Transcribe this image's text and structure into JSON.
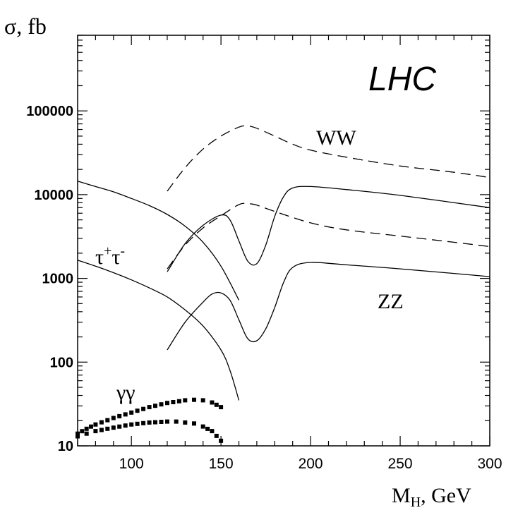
{
  "chart_data": {
    "type": "line",
    "title": "",
    "annotation": "LHC",
    "ylabel": "σ, fb",
    "xlabel": {
      "main": "M",
      "sub": "H",
      "rest": ", GeV"
    },
    "xlim": [
      70,
      300
    ],
    "ylim": [
      10,
      800000
    ],
    "yscale": "log",
    "x_ticks": [
      100,
      150,
      200,
      250,
      300
    ],
    "y_ticks": [
      10,
      100,
      1000,
      10000,
      100000
    ],
    "series_labels": [
      {
        "id": "ww",
        "text": "WW"
      },
      {
        "id": "zz",
        "text": "ZZ"
      },
      {
        "id": "tautau",
        "text": "τ",
        "sup1": "+",
        "mid": "τ",
        "sup2": "-"
      },
      {
        "id": "gamgam",
        "text": "γγ"
      }
    ],
    "series": [
      {
        "id": "ww-dashed-upper",
        "style": "dashed",
        "x": [
          120,
          130,
          140,
          150,
          160,
          165,
          170,
          180,
          190,
          200,
          220,
          250,
          280,
          300
        ],
        "y": [
          11000,
          21000,
          35000,
          50000,
          64000,
          66000,
          62000,
          50000,
          40000,
          34000,
          28000,
          22000,
          18500,
          16000
        ]
      },
      {
        "id": "ww-solid",
        "style": "solid",
        "x": [
          120,
          130,
          140,
          150,
          155,
          160,
          165,
          170,
          175,
          180,
          185,
          190,
          200,
          220,
          250,
          300
        ],
        "y": [
          1200,
          2600,
          4300,
          5700,
          5000,
          2800,
          1600,
          1500,
          2500,
          5500,
          9500,
          12000,
          12500,
          11500,
          9800,
          7000
        ]
      },
      {
        "id": "ww-dashed-lower",
        "style": "dashed",
        "x": [
          120,
          130,
          140,
          150,
          160,
          165,
          170,
          180,
          200,
          220,
          250,
          280,
          300
        ],
        "y": [
          1300,
          2500,
          4000,
          5600,
          7600,
          7800,
          7500,
          6300,
          4600,
          3800,
          3200,
          2700,
          2400
        ]
      },
      {
        "id": "zz-solid",
        "style": "solid",
        "x": [
          120,
          130,
          140,
          145,
          150,
          155,
          160,
          165,
          170,
          175,
          180,
          185,
          190,
          200,
          220,
          250,
          300
        ],
        "y": [
          140,
          300,
          520,
          650,
          670,
          550,
          320,
          190,
          180,
          250,
          450,
          900,
          1350,
          1550,
          1450,
          1300,
          1050
        ]
      },
      {
        "id": "solid-decreasing-upper",
        "style": "solid",
        "x": [
          70,
          80,
          90,
          100,
          110,
          120,
          130,
          140,
          150,
          160
        ],
        "y": [
          14500,
          12500,
          10800,
          9000,
          7400,
          5800,
          4200,
          2700,
          1400,
          550
        ]
      },
      {
        "id": "tautau-solid",
        "style": "solid",
        "x": [
          70,
          80,
          90,
          100,
          110,
          120,
          130,
          140,
          150,
          155,
          160
        ],
        "y": [
          1650,
          1400,
          1170,
          960,
          770,
          600,
          420,
          270,
          140,
          80,
          35
        ]
      },
      {
        "id": "gamgam-upper",
        "style": "dotted",
        "x": [
          70,
          75,
          80,
          90,
          100,
          110,
          120,
          130,
          135,
          140,
          145,
          150
        ],
        "y": [
          14,
          16,
          18,
          21.5,
          25,
          29,
          32.5,
          35,
          35.5,
          35,
          33,
          29
        ]
      },
      {
        "id": "gamgam-lower",
        "style": "dotted",
        "x": [
          70,
          75,
          80,
          90,
          100,
          110,
          120,
          125,
          130,
          135,
          140,
          145,
          150
        ],
        "y": [
          13,
          14,
          15,
          16.5,
          18,
          19,
          19.5,
          19.5,
          19,
          18.5,
          17,
          15,
          11.5
        ]
      }
    ]
  }
}
